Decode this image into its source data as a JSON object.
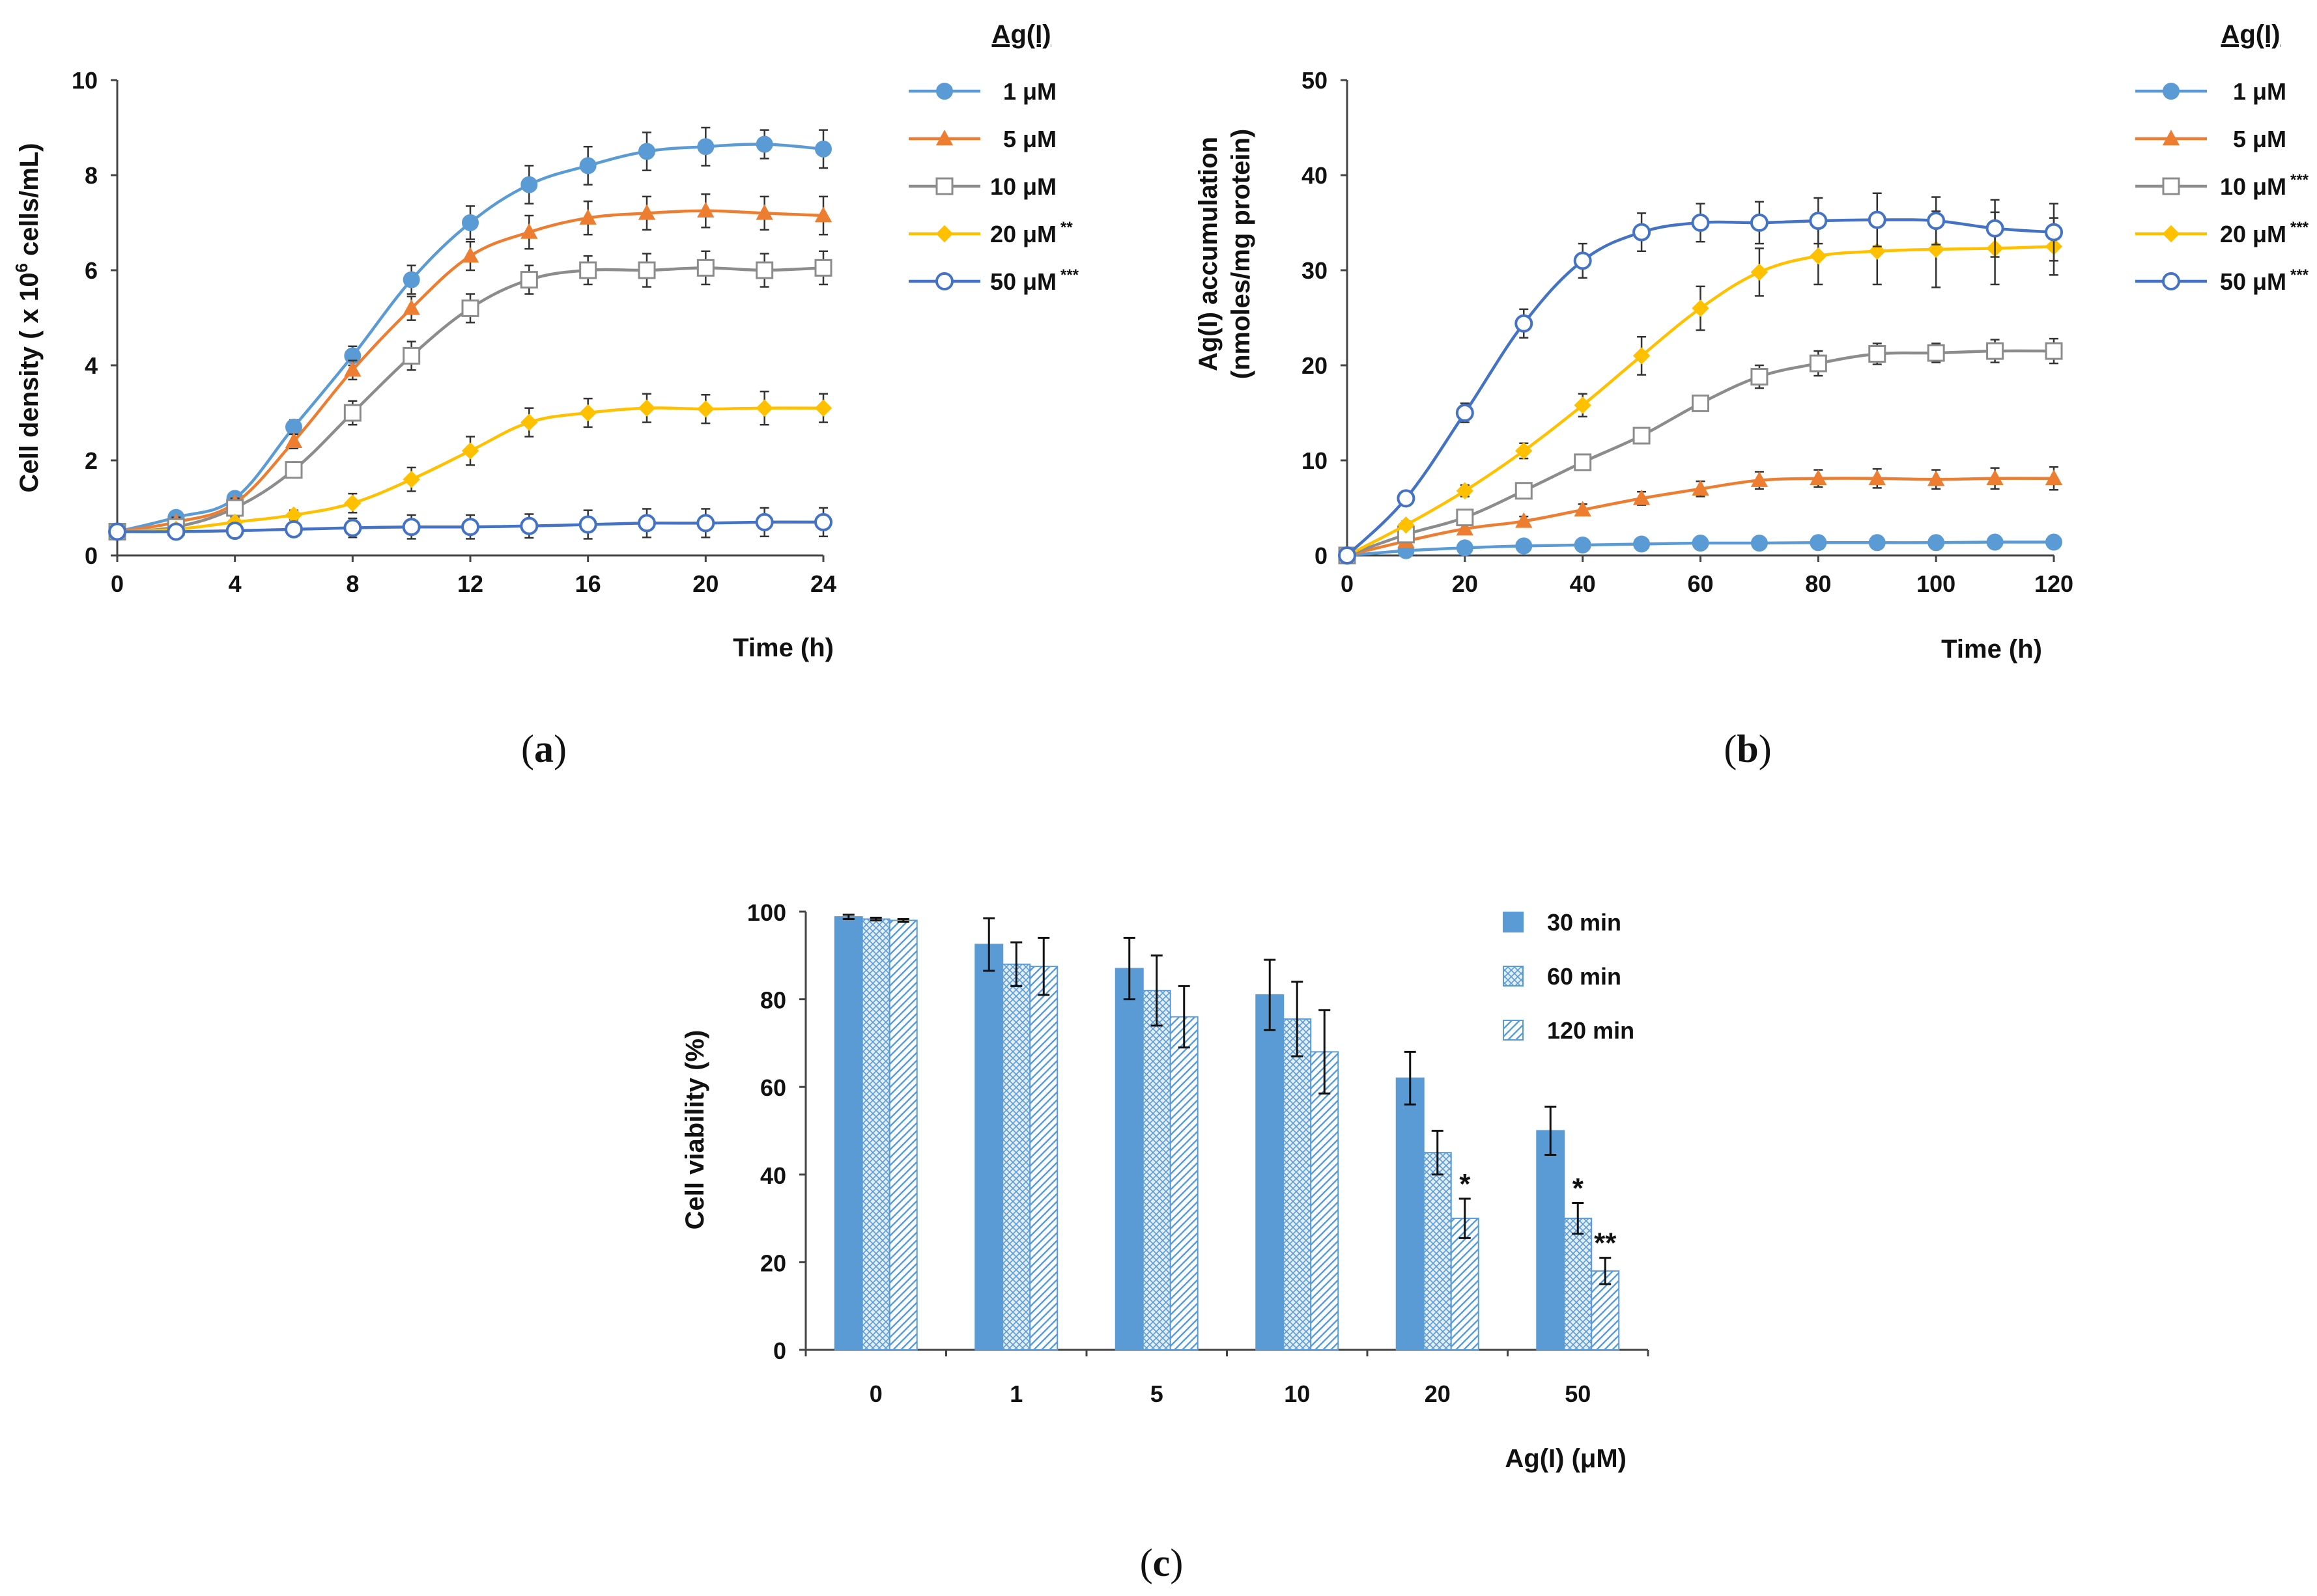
{
  "chart_data": [
    {
      "id": "a",
      "type": "line",
      "panel_label": "a",
      "ylabel": "Cell density ( x 10",
      "ylabel_sup": "6",
      "ylabel_tail": " cells/mL)",
      "xlabel": "Time (h)",
      "xlim": [
        0,
        24
      ],
      "ylim": [
        0,
        10
      ],
      "x_ticks": [
        "0",
        "4",
        "8",
        "12",
        "16",
        "20",
        "24"
      ],
      "y_ticks": [
        "0",
        "2",
        "4",
        "6",
        "8",
        "10"
      ],
      "legend_title": "Ag(I)",
      "series": [
        {
          "name": "1 μM",
          "sig": "",
          "color": "#5b9bd5",
          "marker": "circle-filled",
          "x": [
            0,
            2,
            4,
            6,
            8,
            10,
            12,
            14,
            16,
            18,
            20,
            22,
            24
          ],
          "y": [
            0.5,
            0.8,
            1.2,
            2.7,
            4.2,
            5.8,
            7.0,
            7.8,
            8.2,
            8.5,
            8.6,
            8.65,
            8.55
          ],
          "err": [
            0,
            0.1,
            0.1,
            0.15,
            0.2,
            0.3,
            0.35,
            0.4,
            0.4,
            0.4,
            0.4,
            0.3,
            0.4
          ]
        },
        {
          "name": "5 μM",
          "sig": "",
          "color": "#ed7d31",
          "marker": "triangle-filled",
          "x": [
            0,
            2,
            4,
            6,
            8,
            10,
            12,
            14,
            16,
            18,
            20,
            22,
            24
          ],
          "y": [
            0.5,
            0.7,
            1.1,
            2.4,
            3.9,
            5.2,
            6.3,
            6.8,
            7.1,
            7.2,
            7.25,
            7.2,
            7.15
          ],
          "err": [
            0,
            0.1,
            0.1,
            0.15,
            0.2,
            0.25,
            0.3,
            0.35,
            0.35,
            0.35,
            0.35,
            0.35,
            0.4
          ]
        },
        {
          "name": "10 μM",
          "sig": "",
          "color": "#8c8c8c",
          "marker": "square-open",
          "x": [
            0,
            2,
            4,
            6,
            8,
            10,
            12,
            14,
            16,
            18,
            20,
            22,
            24
          ],
          "y": [
            0.5,
            0.6,
            1.0,
            1.8,
            3.0,
            4.2,
            5.2,
            5.8,
            6.0,
            6.0,
            6.05,
            6.0,
            6.05
          ],
          "err": [
            0,
            0.1,
            0.1,
            0.1,
            0.25,
            0.3,
            0.3,
            0.3,
            0.3,
            0.35,
            0.35,
            0.35,
            0.35
          ]
        },
        {
          "name": "20 μM",
          "sig": "**",
          "color": "#ffc000",
          "marker": "diamond-filled",
          "x": [
            0,
            2,
            4,
            6,
            8,
            10,
            12,
            14,
            16,
            18,
            20,
            22,
            24
          ],
          "y": [
            0.5,
            0.55,
            0.7,
            0.85,
            1.1,
            1.6,
            2.2,
            2.8,
            3.0,
            3.1,
            3.08,
            3.1,
            3.1
          ],
          "err": [
            0,
            0.05,
            0.1,
            0.1,
            0.2,
            0.25,
            0.3,
            0.3,
            0.3,
            0.3,
            0.3,
            0.35,
            0.3
          ]
        },
        {
          "name": "50 μM",
          "sig": "***",
          "color": "#4472c4",
          "marker": "circle-open",
          "x": [
            0,
            2,
            4,
            6,
            8,
            10,
            12,
            14,
            16,
            18,
            20,
            22,
            24
          ],
          "y": [
            0.5,
            0.5,
            0.52,
            0.55,
            0.58,
            0.6,
            0.6,
            0.62,
            0.65,
            0.68,
            0.68,
            0.7,
            0.7
          ],
          "err": [
            0,
            0.05,
            0.1,
            0.15,
            0.2,
            0.25,
            0.25,
            0.25,
            0.3,
            0.3,
            0.3,
            0.3,
            0.3
          ]
        }
      ]
    },
    {
      "id": "b",
      "type": "line",
      "panel_label": "b",
      "ylabel_line1": "Ag(I) accumulation",
      "ylabel_line2": "(nmoles/mg protein)",
      "xlabel": "Time (h)",
      "xlim": [
        0,
        120
      ],
      "ylim": [
        0,
        50
      ],
      "x_ticks": [
        "0",
        "20",
        "40",
        "60",
        "80",
        "100",
        "120"
      ],
      "y_ticks": [
        "0",
        "10",
        "20",
        "30",
        "40",
        "50"
      ],
      "legend_title": "Ag(I)",
      "series": [
        {
          "name": "1 μM",
          "sig": "",
          "color": "#5b9bd5",
          "marker": "circle-filled",
          "x": [
            0,
            10,
            20,
            30,
            40,
            50,
            60,
            70,
            80,
            90,
            100,
            110,
            120
          ],
          "y": [
            0,
            0.5,
            0.8,
            1.0,
            1.1,
            1.2,
            1.3,
            1.3,
            1.35,
            1.35,
            1.35,
            1.4,
            1.4
          ],
          "err": [
            0,
            0.1,
            0.1,
            0.1,
            0.1,
            0.1,
            0.1,
            0.1,
            0.1,
            0.1,
            0.1,
            0.1,
            0.1
          ]
        },
        {
          "name": "5 μM",
          "sig": "",
          "color": "#ed7d31",
          "marker": "triangle-filled",
          "x": [
            0,
            10,
            20,
            30,
            40,
            50,
            60,
            70,
            80,
            90,
            100,
            110,
            120
          ],
          "y": [
            0,
            1.5,
            2.8,
            3.6,
            4.8,
            6.0,
            7.0,
            7.9,
            8.1,
            8.1,
            8.0,
            8.1,
            8.1
          ],
          "err": [
            0,
            0.3,
            0.4,
            0.5,
            0.6,
            0.7,
            0.8,
            0.9,
            0.9,
            1.0,
            1.0,
            1.1,
            1.2
          ]
        },
        {
          "name": "10 μM",
          "sig": "***",
          "color": "#8c8c8c",
          "marker": "square-open",
          "x": [
            0,
            10,
            20,
            30,
            40,
            50,
            60,
            70,
            80,
            90,
            100,
            110,
            120
          ],
          "y": [
            0,
            2.2,
            4.0,
            6.8,
            9.8,
            12.6,
            16.0,
            18.8,
            20.2,
            21.2,
            21.3,
            21.5,
            21.5
          ],
          "err": [
            0,
            0.3,
            0.4,
            0.5,
            0.5,
            0.5,
            0.6,
            1.2,
            1.3,
            1.1,
            1.0,
            1.2,
            1.3
          ]
        },
        {
          "name": "20 μM",
          "sig": "***",
          "color": "#ffc000",
          "marker": "diamond-filled",
          "x": [
            0,
            10,
            20,
            30,
            40,
            50,
            60,
            70,
            80,
            90,
            100,
            110,
            120
          ],
          "y": [
            0,
            3.2,
            6.8,
            11.0,
            15.8,
            21.0,
            26.0,
            29.8,
            31.5,
            32.0,
            32.2,
            32.3,
            32.5
          ],
          "err": [
            0,
            0.4,
            0.6,
            0.8,
            1.2,
            2.0,
            2.3,
            2.5,
            3.0,
            3.5,
            4.0,
            3.8,
            3.0
          ]
        },
        {
          "name": "50 μM",
          "sig": "***",
          "color": "#4472c4",
          "marker": "circle-open",
          "x": [
            0,
            10,
            20,
            30,
            40,
            50,
            60,
            70,
            80,
            90,
            100,
            110,
            120
          ],
          "y": [
            0,
            6.0,
            15.0,
            24.4,
            31.0,
            34.0,
            35.0,
            35.0,
            35.2,
            35.3,
            35.2,
            34.4,
            34.0
          ],
          "err": [
            0,
            0.5,
            1.0,
            1.5,
            1.8,
            2.0,
            2.0,
            2.2,
            2.4,
            2.8,
            2.5,
            3.0,
            3.0
          ]
        }
      ]
    },
    {
      "id": "c",
      "type": "bar",
      "panel_label": "c",
      "ylabel": "Cell viability (%)",
      "xlabel": "Ag(I) (μM)",
      "ylim": [
        0,
        100
      ],
      "y_ticks": [
        "0",
        "20",
        "40",
        "60",
        "80",
        "100"
      ],
      "categories": [
        "0",
        "1",
        "5",
        "10",
        "20",
        "50"
      ],
      "series": [
        {
          "name": "30 min",
          "color": "#5b9bd5",
          "pattern": "solid",
          "values": [
            98.8,
            92.5,
            87.0,
            81.0,
            62.0,
            50.0
          ],
          "err": [
            0.5,
            6.0,
            7.0,
            8.0,
            6.0,
            5.5
          ],
          "sig": [
            "",
            "",
            "",
            "",
            "",
            ""
          ]
        },
        {
          "name": "60 min",
          "color": "#5b9bd5",
          "pattern": "crosshatch",
          "values": [
            98.3,
            88.0,
            82.0,
            75.5,
            45.0,
            30.0
          ],
          "err": [
            0.3,
            5.0,
            8.0,
            8.5,
            5.0,
            3.5
          ],
          "sig": [
            "",
            "",
            "",
            "",
            "",
            "*"
          ]
        },
        {
          "name": "120 min",
          "color": "#5b9bd5",
          "pattern": "diagonal",
          "values": [
            98.0,
            87.5,
            76.0,
            68.0,
            30.0,
            18.0
          ],
          "err": [
            0.3,
            6.5,
            7.0,
            9.5,
            4.5,
            3.0
          ],
          "sig": [
            "",
            "",
            "",
            "",
            "*",
            "**"
          ]
        }
      ]
    }
  ]
}
